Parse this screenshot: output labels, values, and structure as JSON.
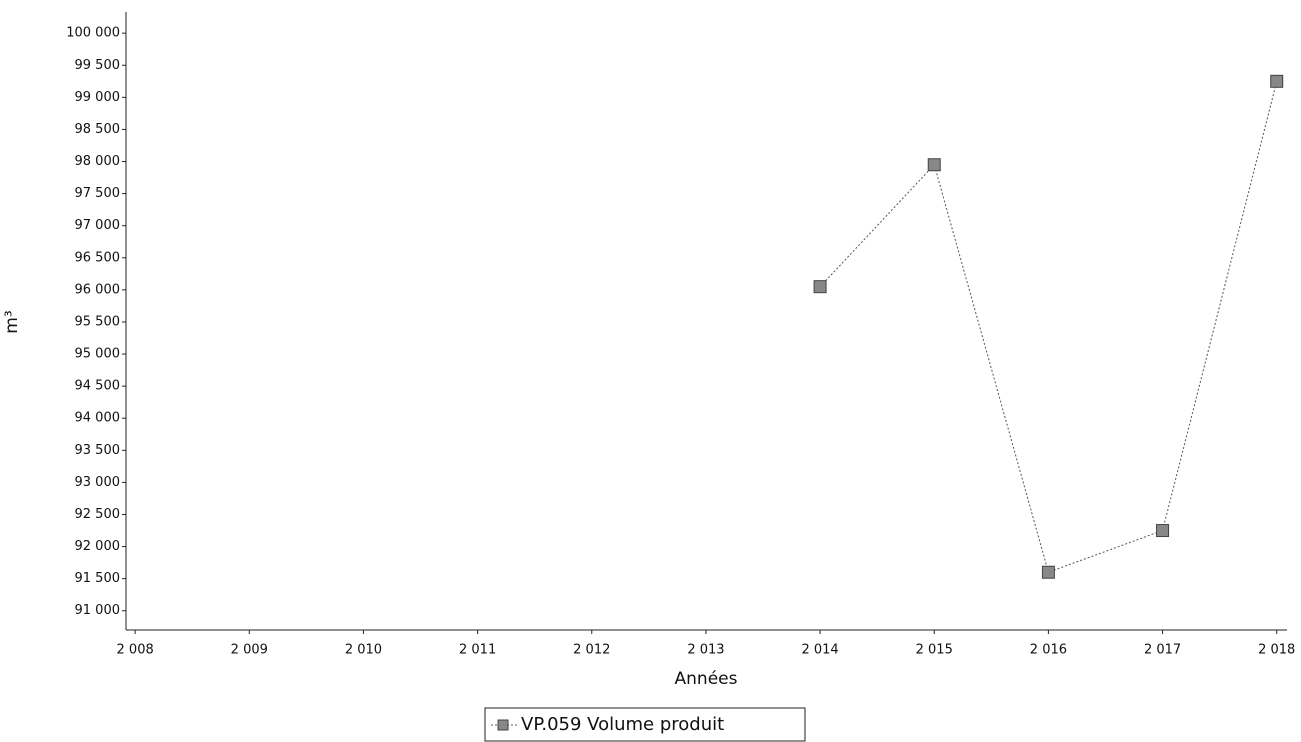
{
  "chart_data": {
    "type": "line",
    "x_label": "Années",
    "y_label": "m³",
    "x": [
      2014,
      2015,
      2016,
      2017,
      2018
    ],
    "series": [
      {
        "name": "VP.059 Volume produit",
        "color": "#888888",
        "values": [
          96050,
          97950,
          91600,
          92250,
          99250
        ]
      }
    ],
    "xlim": [
      2007.92,
      2018.09
    ],
    "xticks": [
      {
        "value": 2008,
        "label": "2 008"
      },
      {
        "value": 2009,
        "label": "2 009"
      },
      {
        "value": 2010,
        "label": "2 010"
      },
      {
        "value": 2011,
        "label": "2 011"
      },
      {
        "value": 2012,
        "label": "2 012"
      },
      {
        "value": 2013,
        "label": "2 013"
      },
      {
        "value": 2014,
        "label": "2 014"
      },
      {
        "value": 2015,
        "label": "2 015"
      },
      {
        "value": 2016,
        "label": "2 016"
      },
      {
        "value": 2017,
        "label": "2 017"
      },
      {
        "value": 2018,
        "label": "2 018"
      }
    ],
    "ylim": [
      90700,
      100330
    ],
    "yticks": [
      {
        "value": 91000,
        "label": "91 000"
      },
      {
        "value": 91500,
        "label": "91 500"
      },
      {
        "value": 92000,
        "label": "92 000"
      },
      {
        "value": 92500,
        "label": "92 500"
      },
      {
        "value": 93000,
        "label": "93 000"
      },
      {
        "value": 93500,
        "label": "93 500"
      },
      {
        "value": 94000,
        "label": "94 000"
      },
      {
        "value": 94500,
        "label": "94 500"
      },
      {
        "value": 95000,
        "label": "95 000"
      },
      {
        "value": 95500,
        "label": "95 500"
      },
      {
        "value": 96000,
        "label": "96 000"
      },
      {
        "value": 96500,
        "label": "96 500"
      },
      {
        "value": 97000,
        "label": "97 000"
      },
      {
        "value": 97500,
        "label": "97 500"
      },
      {
        "value": 98000,
        "label": "98 000"
      },
      {
        "value": 98500,
        "label": "98 500"
      },
      {
        "value": 99000,
        "label": "99 000"
      },
      {
        "value": 99500,
        "label": "99 500"
      },
      {
        "value": 100000,
        "label": "100 000"
      }
    ],
    "grid": false
  }
}
